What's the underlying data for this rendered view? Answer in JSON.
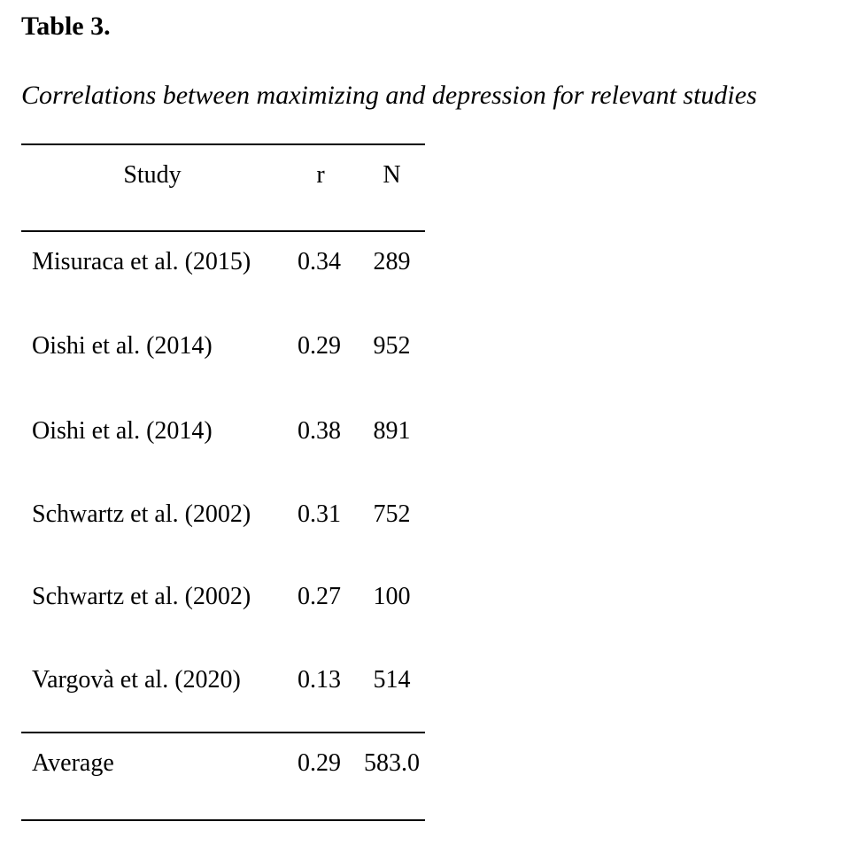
{
  "table": {
    "number": "Table 3.",
    "caption": "Correlations between maximizing and depression for relevant studies",
    "columns": {
      "study": "Study",
      "r": "r",
      "n": "N"
    },
    "rows": [
      {
        "study": "Misuraca et al. (2015)",
        "r": "0.34",
        "n": "289"
      },
      {
        "study": "Oishi et al. (2014)",
        "r": "0.29",
        "n": "952"
      },
      {
        "study": "Oishi et al. (2014)",
        "r": "0.38",
        "n": "891"
      },
      {
        "study": "Schwartz et al. (2002)",
        "r": "0.31",
        "n": "752"
      },
      {
        "study": "Schwartz et al. (2002)",
        "r": "0.27",
        "n": "100"
      },
      {
        "study": "Vargovà et al. (2020)",
        "r": "0.13",
        "n": "514"
      }
    ],
    "summary": {
      "study": "Average",
      "r": "0.29",
      "n": "583.0"
    }
  }
}
